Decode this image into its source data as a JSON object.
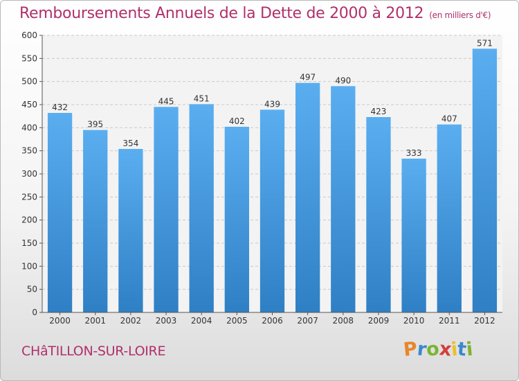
{
  "header": {
    "title": "Remboursements Annuels de la Dette de 2000 à 2012",
    "unit": "(en milliers d'€)"
  },
  "footer": {
    "commune": "CHâTILLON-SUR-LOIRE"
  },
  "logo": {
    "letters": [
      "P",
      "r",
      "o",
      "x",
      "i",
      "t",
      "i"
    ],
    "colors": [
      "#e8862a",
      "#3b88cf",
      "#7ab534",
      "#d43f3a",
      "#e8c22a",
      "#3b88cf",
      "#7ab534"
    ]
  },
  "colors": {
    "bar": "#3d8fd8",
    "bar_light": "#5aaef0",
    "title": "#b0306a"
  },
  "chart_data": {
    "type": "bar",
    "categories": [
      "2000",
      "2001",
      "2002",
      "2003",
      "2004",
      "2005",
      "2006",
      "2007",
      "2008",
      "2009",
      "2010",
      "2011",
      "2012"
    ],
    "values": [
      432,
      395,
      354,
      445,
      451,
      402,
      439,
      497,
      490,
      423,
      333,
      407,
      571
    ],
    "ylim": [
      0,
      600
    ],
    "yticks": [
      0,
      50,
      100,
      150,
      200,
      250,
      300,
      350,
      400,
      450,
      500,
      550,
      600
    ],
    "grid": true
  }
}
